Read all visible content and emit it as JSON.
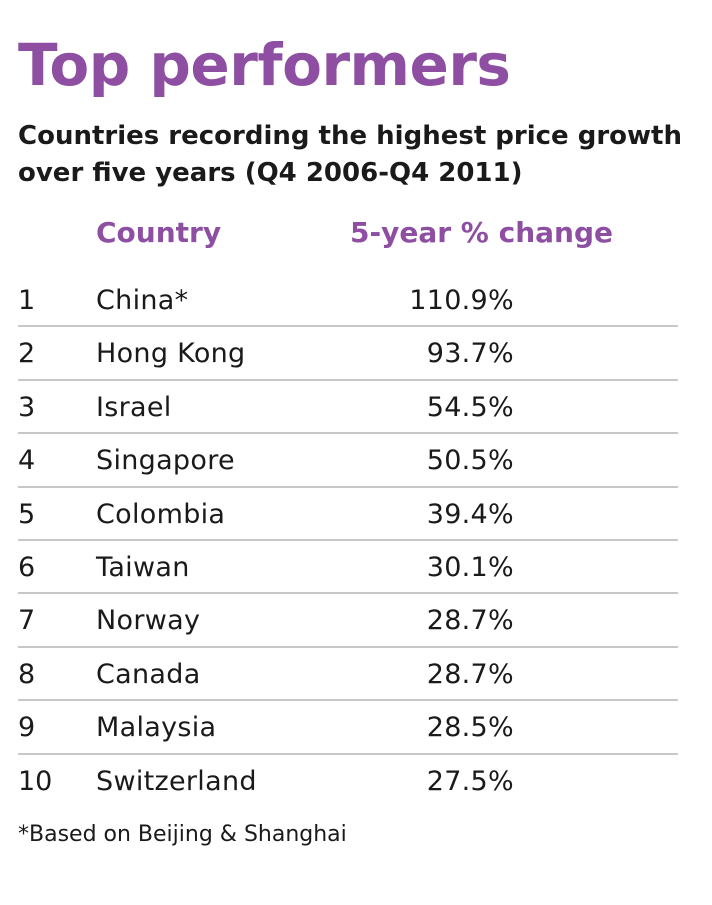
{
  "title": "Top performers",
  "subtitle": "Countries recording the highest price growth over five years (Q4 2006-Q4 2011)",
  "chart_data": {
    "type": "table",
    "columns": [
      "Country",
      "5-year % change"
    ],
    "rows": [
      {
        "rank": "1",
        "country": "China*",
        "value": "110.9%"
      },
      {
        "rank": "2",
        "country": "Hong Kong",
        "value": "93.7%"
      },
      {
        "rank": "3",
        "country": "Israel",
        "value": "54.5%"
      },
      {
        "rank": "4",
        "country": "Singapore",
        "value": "50.5%"
      },
      {
        "rank": "5",
        "country": "Colombia",
        "value": "39.4%"
      },
      {
        "rank": "6",
        "country": "Taiwan",
        "value": "30.1%"
      },
      {
        "rank": "7",
        "country": "Norway",
        "value": "28.7%"
      },
      {
        "rank": "8",
        "country": "Canada",
        "value": "28.7%"
      },
      {
        "rank": "9",
        "country": "Malaysia",
        "value": "28.5%"
      },
      {
        "rank": "10",
        "country": "Switzerland",
        "value": "27.5%"
      }
    ],
    "footnote": "*Based on Beijing & Shanghai"
  },
  "colors": {
    "accent": "#8e4fa3",
    "text": "#1a1a1a",
    "rule": "#c8c8c8"
  }
}
